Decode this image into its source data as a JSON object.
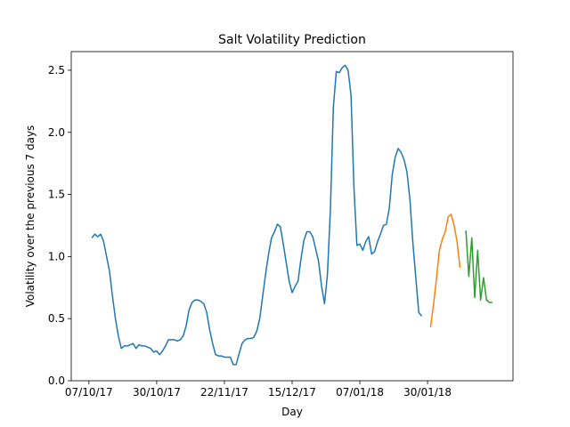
{
  "chart_data": {
    "type": "line",
    "title": "Salt Volatility Prediction",
    "x_label": "Day",
    "y_label": "Volatility over the previous 7 days",
    "xlim": [
      "2017-10-01",
      "2018-02-28"
    ],
    "xticks": [
      {
        "value": "2017-10-07",
        "label": "07/10/17"
      },
      {
        "value": "2017-10-30",
        "label": "30/10/17"
      },
      {
        "value": "2017-11-22",
        "label": "22/11/17"
      },
      {
        "value": "2017-12-15",
        "label": "15/12/17"
      },
      {
        "value": "2018-01-07",
        "label": "07/01/18"
      },
      {
        "value": "2018-01-30",
        "label": "30/01/18"
      }
    ],
    "ylim": [
      0,
      2.65
    ],
    "yticks": [
      {
        "value": 0,
        "label": "0.0"
      },
      0.5,
      {
        "value": 1,
        "label": "1.0"
      },
      1.5,
      {
        "value": 2,
        "label": "2.0"
      },
      2.5
    ],
    "grid": false,
    "series": [
      {
        "color": "#1f77b4",
        "x": [
          "2017-10-08",
          "2017-10-09",
          "2017-10-10",
          "2017-10-11",
          "2017-10-12",
          "2017-10-13",
          "2017-10-14",
          "2017-10-15",
          "2017-10-16",
          "2017-10-17",
          "2017-10-18",
          "2017-10-19",
          "2017-10-20",
          "2017-10-21",
          "2017-10-22",
          "2017-10-23",
          "2017-10-24",
          "2017-10-25",
          "2017-10-26",
          "2017-10-27",
          "2017-10-28",
          "2017-10-29",
          "2017-10-30",
          "2017-10-31",
          "2017-11-01",
          "2017-11-02",
          "2017-11-03",
          "2017-11-04",
          "2017-11-05",
          "2017-11-06",
          "2017-11-07",
          "2017-11-08",
          "2017-11-09",
          "2017-11-10",
          "2017-11-11",
          "2017-11-12",
          "2017-11-13",
          "2017-11-14",
          "2017-11-15",
          "2017-11-16",
          "2017-11-17",
          "2017-11-18",
          "2017-11-19",
          "2017-11-20",
          "2017-11-21",
          "2017-11-22",
          "2017-11-23",
          "2017-11-24",
          "2017-11-25",
          "2017-11-26",
          "2017-11-27",
          "2017-11-28",
          "2017-11-29",
          "2017-11-30",
          "2017-12-01",
          "2017-12-02",
          "2017-12-03",
          "2017-12-04",
          "2017-12-05",
          "2017-12-06",
          "2017-12-07",
          "2017-12-08",
          "2017-12-09",
          "2017-12-10",
          "2017-12-11",
          "2017-12-12",
          "2017-12-13",
          "2017-12-14",
          "2017-12-15",
          "2017-12-16",
          "2017-12-17",
          "2017-12-18",
          "2017-12-19",
          "2017-12-20",
          "2017-12-21",
          "2017-12-22",
          "2017-12-23",
          "2017-12-24",
          "2017-12-25",
          "2017-12-26",
          "2017-12-27",
          "2017-12-28",
          "2017-12-29",
          "2017-12-30",
          "2017-12-31",
          "2018-01-01",
          "2018-01-02",
          "2018-01-03",
          "2018-01-04",
          "2018-01-05",
          "2018-01-06",
          "2018-01-07",
          "2018-01-08",
          "2018-01-09",
          "2018-01-10",
          "2018-01-11",
          "2018-01-12",
          "2018-01-13",
          "2018-01-14",
          "2018-01-15",
          "2018-01-16",
          "2018-01-17",
          "2018-01-18",
          "2018-01-19",
          "2018-01-20",
          "2018-01-21",
          "2018-01-22",
          "2018-01-23",
          "2018-01-24",
          "2018-01-25",
          "2018-01-26",
          "2018-01-27",
          "2018-01-28"
        ],
        "values": [
          1.15,
          1.18,
          1.16,
          1.18,
          1.12,
          1.0,
          0.88,
          0.68,
          0.5,
          0.36,
          0.26,
          0.28,
          0.28,
          0.29,
          0.3,
          0.26,
          0.29,
          0.28,
          0.28,
          0.27,
          0.26,
          0.23,
          0.24,
          0.21,
          0.24,
          0.28,
          0.33,
          0.33,
          0.33,
          0.32,
          0.33,
          0.36,
          0.44,
          0.57,
          0.63,
          0.65,
          0.65,
          0.64,
          0.62,
          0.55,
          0.41,
          0.3,
          0.21,
          0.2,
          0.2,
          0.19,
          0.19,
          0.19,
          0.13,
          0.13,
          0.22,
          0.3,
          0.33,
          0.34,
          0.34,
          0.35,
          0.4,
          0.5,
          0.68,
          0.86,
          1.02,
          1.15,
          1.2,
          1.26,
          1.24,
          1.1,
          0.95,
          0.8,
          0.71,
          0.76,
          0.8,
          0.98,
          1.13,
          1.2,
          1.2,
          1.16,
          1.06,
          0.96,
          0.76,
          0.62,
          0.86,
          1.38,
          2.2,
          2.49,
          2.48,
          2.52,
          2.54,
          2.5,
          2.3,
          1.55,
          1.09,
          1.1,
          1.05,
          1.12,
          1.16,
          1.02,
          1.04,
          1.12,
          1.18,
          1.25,
          1.26,
          1.39,
          1.66,
          1.8,
          1.87,
          1.84,
          1.78,
          1.68,
          1.46,
          1.11,
          0.83,
          0.55,
          0.52
        ]
      },
      {
        "color": "#ff7f0e",
        "x": [
          "2018-01-31",
          "2018-02-01",
          "2018-02-02",
          "2018-02-03",
          "2018-02-04",
          "2018-02-05",
          "2018-02-06",
          "2018-02-07",
          "2018-02-08",
          "2018-02-09",
          "2018-02-10"
        ],
        "values": [
          0.43,
          0.61,
          0.82,
          1.05,
          1.14,
          1.2,
          1.32,
          1.34,
          1.25,
          1.12,
          0.91
        ]
      },
      {
        "color": "#2ca02c",
        "x": [
          "2018-02-12",
          "2018-02-13",
          "2018-02-14",
          "2018-02-15",
          "2018-02-16",
          "2018-02-17",
          "2018-02-18",
          "2018-02-19",
          "2018-02-20",
          "2018-02-21"
        ],
        "values": [
          1.21,
          0.84,
          1.15,
          0.67,
          1.05,
          0.65,
          0.83,
          0.65,
          0.63,
          0.63
        ]
      }
    ]
  }
}
